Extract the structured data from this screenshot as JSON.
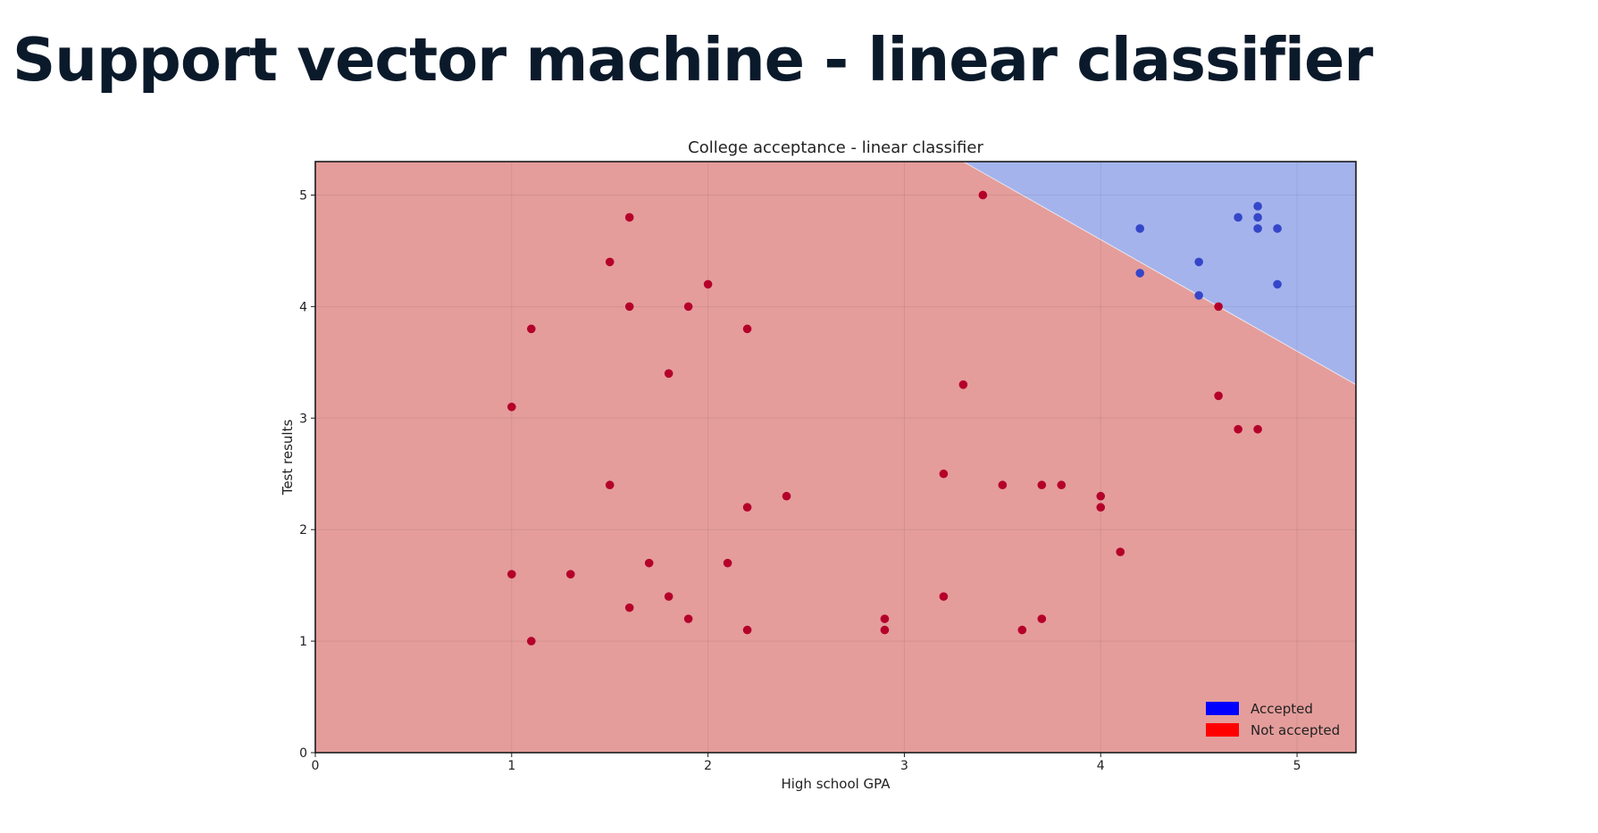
{
  "page": {
    "title": "Support vector machine - linear classifier"
  },
  "chart_data": {
    "type": "scatter",
    "title": "College acceptance - linear classifier",
    "xlabel": "High school GPA",
    "ylabel": "Test results",
    "xlim": [
      0,
      5.3
    ],
    "ylim": [
      0,
      5.3
    ],
    "xticks": [
      0,
      1,
      2,
      3,
      4,
      5
    ],
    "yticks": [
      0,
      1,
      2,
      3,
      4,
      5
    ],
    "grid": true,
    "legend_position": "bottom-right",
    "decision_boundary": {
      "description": "linear",
      "x": [
        3.3,
        5.3
      ],
      "y": [
        5.3,
        3.3
      ],
      "regions": [
        {
          "name": "Accepted",
          "side": "above",
          "color": "#a4b3ec"
        },
        {
          "name": "Not accepted",
          "side": "below",
          "color": "#e49d9b"
        }
      ]
    },
    "series": [
      {
        "name": "Accepted",
        "legend_color": "#0000ff",
        "point_color": "#3546c9",
        "points": [
          [
            4.2,
            4.7
          ],
          [
            4.2,
            4.3
          ],
          [
            4.5,
            4.4
          ],
          [
            4.5,
            4.1
          ],
          [
            4.7,
            4.8
          ],
          [
            4.8,
            4.9
          ],
          [
            4.8,
            4.8
          ],
          [
            4.8,
            4.7
          ],
          [
            4.9,
            4.7
          ],
          [
            4.9,
            4.2
          ]
        ]
      },
      {
        "name": "Not accepted",
        "legend_color": "#ff0000",
        "point_color": "#b5002a",
        "points": [
          [
            1.0,
            3.1
          ],
          [
            1.0,
            1.6
          ],
          [
            1.1,
            3.8
          ],
          [
            1.1,
            1.0
          ],
          [
            1.3,
            1.6
          ],
          [
            1.5,
            4.4
          ],
          [
            1.5,
            2.4
          ],
          [
            1.6,
            4.8
          ],
          [
            1.6,
            4.0
          ],
          [
            1.6,
            1.3
          ],
          [
            1.7,
            1.7
          ],
          [
            1.8,
            3.4
          ],
          [
            1.8,
            1.4
          ],
          [
            1.9,
            4.0
          ],
          [
            1.9,
            1.2
          ],
          [
            2.0,
            4.2
          ],
          [
            2.1,
            1.7
          ],
          [
            2.2,
            3.8
          ],
          [
            2.2,
            2.2
          ],
          [
            2.2,
            1.1
          ],
          [
            2.4,
            2.3
          ],
          [
            2.9,
            1.2
          ],
          [
            2.9,
            1.1
          ],
          [
            3.2,
            2.5
          ],
          [
            3.2,
            1.4
          ],
          [
            3.3,
            3.3
          ],
          [
            3.4,
            5.0
          ],
          [
            3.5,
            2.4
          ],
          [
            3.6,
            1.1
          ],
          [
            3.7,
            2.4
          ],
          [
            3.7,
            1.2
          ],
          [
            3.8,
            2.4
          ],
          [
            4.0,
            2.3
          ],
          [
            4.0,
            2.2
          ],
          [
            4.1,
            1.8
          ],
          [
            4.6,
            4.0
          ],
          [
            4.6,
            3.2
          ],
          [
            4.7,
            2.9
          ],
          [
            4.8,
            2.9
          ]
        ]
      }
    ]
  }
}
